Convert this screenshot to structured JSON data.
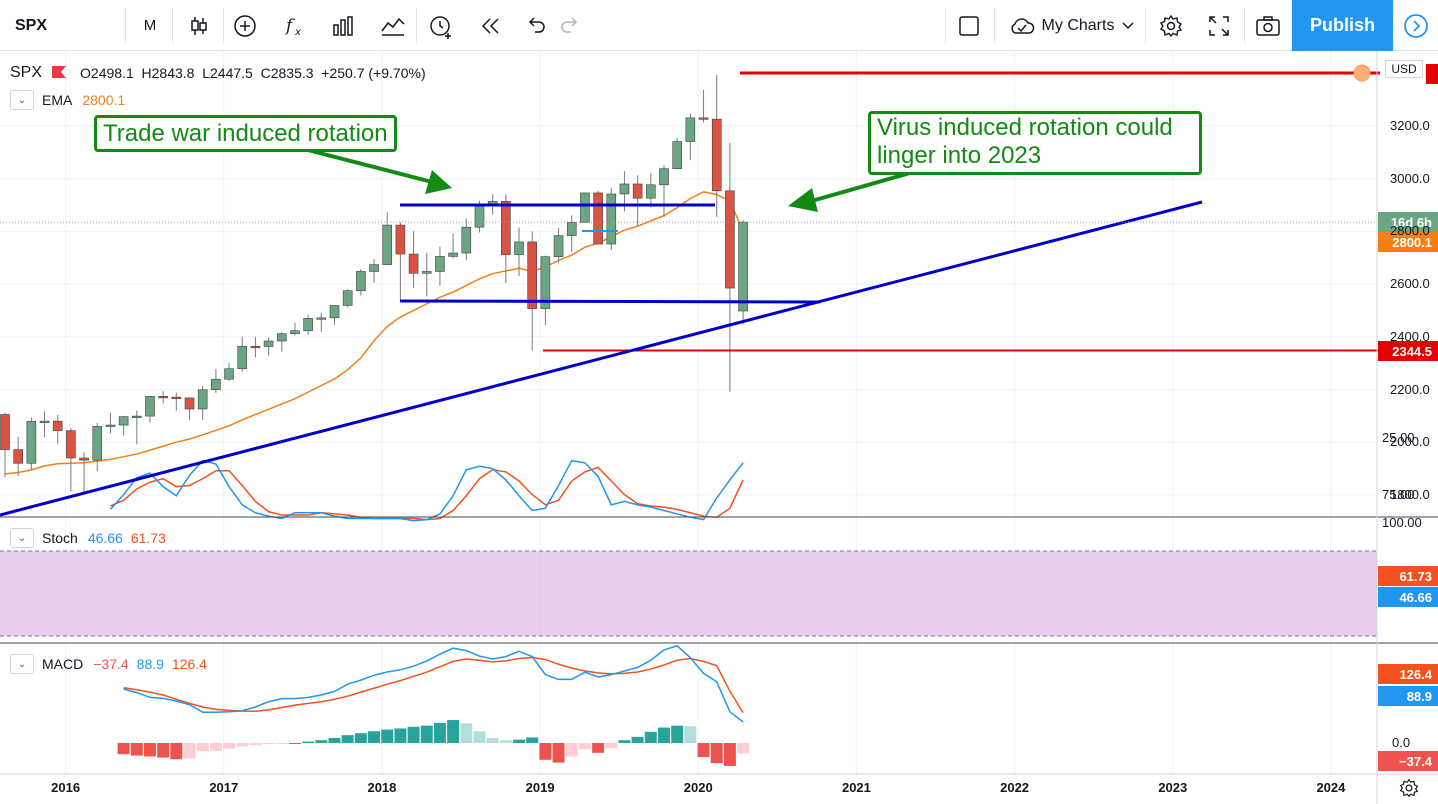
{
  "toolbar": {
    "symbol": "SPX",
    "interval": "M",
    "my_charts_label": "My Charts",
    "publish_label": "Publish"
  },
  "main_legend": {
    "symbol": "SPX",
    "ohlc_text": "O2498.1  H2843.8  L2447.5  C2835.3  +250.7 (+9.70%)",
    "currency": "USD"
  },
  "ema_legend": {
    "name": "EMA",
    "value": "2800.1",
    "color": "#f57f17"
  },
  "stoch_legend": {
    "name": "Stoch",
    "k": "46.66",
    "d": "61.73",
    "k_color": "#2196f3",
    "d_color": "#f4511e"
  },
  "macd_legend": {
    "name": "MACD",
    "hist": "−37.4",
    "macd": "88.9",
    "signal": "126.4"
  },
  "annotations": {
    "trade_war": "Trade war induced rotation",
    "virus_line1": "Virus induced rotation could",
    "virus_line2": "linger into 2023"
  },
  "price_axis": {
    "ticks": [
      "3200.0",
      "3000.0",
      "2800.0",
      "2600.0",
      "2400.0",
      "2200.0",
      "2000.0",
      "1800.0"
    ],
    "label_countdown": "16d 6h",
    "label_ema": "2800.1",
    "label_support": "2344.5",
    "resistance_level": 3390,
    "support_level": 2344.5
  },
  "stoch_axis": {
    "ticks": [
      "100.00",
      "75.00",
      "25.00"
    ],
    "label_d": "61.73",
    "label_k": "46.66"
  },
  "macd_axis": {
    "ticks": [
      "0.0"
    ],
    "label_signal": "126.4",
    "label_macd": "88.9",
    "label_hist": "−37.4"
  },
  "time_axis": {
    "ticks": [
      "2016",
      "2017",
      "2018",
      "2019",
      "2020",
      "2021",
      "2022",
      "2023",
      "2024"
    ]
  },
  "colors": {
    "up": "#6ba583",
    "down": "#d75442",
    "accent": "#2196f3",
    "trend": "#0000cc",
    "annotation": "#138a13",
    "level": "#e60000"
  },
  "chart_data": {
    "type": "candlestick",
    "timeframe": "monthly",
    "start": "2015-08",
    "candles": [
      [
        2105,
        2112,
        1867,
        1972
      ],
      [
        1972,
        2021,
        1872,
        1920
      ],
      [
        1920,
        2094,
        1893,
        2079
      ],
      [
        2079,
        2117,
        2019,
        2080
      ],
      [
        2080,
        2104,
        1993,
        2044
      ],
      [
        2044,
        2053,
        1812,
        1940
      ],
      [
        1940,
        1962,
        1810,
        1932
      ],
      [
        1932,
        2073,
        1891,
        2060
      ],
      [
        2060,
        2111,
        2034,
        2065
      ],
      [
        2065,
        2099,
        2025,
        2097
      ],
      [
        2097,
        2120,
        1992,
        2099
      ],
      [
        2099,
        2176,
        2074,
        2174
      ],
      [
        2174,
        2194,
        2147,
        2171
      ],
      [
        2171,
        2188,
        2119,
        2168
      ],
      [
        2168,
        2169,
        2084,
        2126
      ],
      [
        2126,
        2214,
        2084,
        2199
      ],
      [
        2199,
        2278,
        2187,
        2239
      ],
      [
        2239,
        2301,
        2233,
        2279
      ],
      [
        2279,
        2401,
        2268,
        2364
      ],
      [
        2364,
        2400,
        2322,
        2363
      ],
      [
        2363,
        2398,
        2329,
        2384
      ],
      [
        2384,
        2418,
        2344,
        2412
      ],
      [
        2412,
        2453,
        2405,
        2423
      ],
      [
        2423,
        2484,
        2407,
        2470
      ],
      [
        2470,
        2491,
        2418,
        2472
      ],
      [
        2472,
        2519,
        2446,
        2519
      ],
      [
        2519,
        2582,
        2511,
        2575
      ],
      [
        2575,
        2657,
        2557,
        2648
      ],
      [
        2648,
        2695,
        2605,
        2674
      ],
      [
        2674,
        2873,
        2674,
        2824
      ],
      [
        2824,
        2835,
        2533,
        2714
      ],
      [
        2714,
        2801,
        2585,
        2641
      ],
      [
        2641,
        2718,
        2553,
        2648
      ],
      [
        2648,
        2742,
        2594,
        2705
      ],
      [
        2705,
        2791,
        2698,
        2718
      ],
      [
        2718,
        2848,
        2691,
        2816
      ],
      [
        2816,
        2916,
        2796,
        2902
      ],
      [
        2902,
        2941,
        2864,
        2914
      ],
      [
        2914,
        2940,
        2604,
        2712
      ],
      [
        2712,
        2815,
        2631,
        2760
      ],
      [
        2760,
        2800,
        2347,
        2507
      ],
      [
        2507,
        2708,
        2444,
        2704
      ],
      [
        2704,
        2813,
        2681,
        2784
      ],
      [
        2784,
        2861,
        2722,
        2834
      ],
      [
        2834,
        2946,
        2834,
        2946
      ],
      [
        2946,
        2954,
        2750,
        2752
      ],
      [
        2752,
        2964,
        2729,
        2942
      ],
      [
        2942,
        3028,
        2876,
        2980
      ],
      [
        2980,
        3013,
        2822,
        2926
      ],
      [
        2926,
        3021,
        2891,
        2977
      ],
      [
        2977,
        3050,
        2855,
        3038
      ],
      [
        3038,
        3154,
        3038,
        3141
      ],
      [
        3141,
        3247,
        3070,
        3231
      ],
      [
        3231,
        3337,
        3214,
        3226
      ],
      [
        3226,
        3394,
        2855,
        2954
      ],
      [
        2954,
        3136,
        2192,
        2585
      ],
      [
        2498,
        2844,
        2448,
        2835
      ]
    ],
    "ema": [
      1880,
      1885,
      1895,
      1910,
      1918,
      1920,
      1922,
      1928,
      1935,
      1945,
      1955,
      1970,
      1985,
      2000,
      2012,
      2028,
      2045,
      2062,
      2085,
      2105,
      2125,
      2145,
      2165,
      2190,
      2215,
      2240,
      2275,
      2320,
      2385,
      2440,
      2475,
      2500,
      2525,
      2550,
      2570,
      2595,
      2620,
      2640,
      2650,
      2660,
      2648,
      2665,
      2690,
      2710,
      2740,
      2755,
      2780,
      2805,
      2820,
      2840,
      2860,
      2890,
      2925,
      2950,
      2940,
      2915,
      2800
    ],
    "stoch_k": [
      88,
      75,
      60,
      56,
      68,
      76,
      58,
      45,
      48,
      68,
      84,
      91,
      94,
      96,
      91,
      91,
      91,
      94,
      96,
      96,
      96,
      96,
      96,
      98,
      97,
      92,
      76,
      53,
      50,
      52,
      62,
      76,
      89,
      87,
      67,
      45,
      47,
      59,
      84,
      81,
      84,
      86,
      89,
      92,
      95,
      97,
      78,
      62,
      47
    ],
    "stoch_d": [
      85,
      80,
      70,
      64,
      61,
      68,
      67,
      61,
      54,
      54,
      67,
      81,
      90,
      93,
      93,
      93,
      91,
      92,
      93,
      95,
      96,
      96,
      96,
      96,
      97,
      96,
      89,
      76,
      61,
      53,
      55,
      63,
      75,
      84,
      80,
      63,
      55,
      51,
      63,
      75,
      83,
      85,
      86,
      88,
      91,
      94,
      95,
      87,
      62
    ],
    "macd_line": [
      225,
      210,
      190,
      186,
      175,
      160,
      128,
      128,
      130,
      134,
      150,
      172,
      185,
      185,
      190,
      200,
      215,
      245,
      262,
      282,
      296,
      305,
      320,
      342,
      370,
      395,
      385,
      362,
      350,
      360,
      382,
      360,
      285,
      265,
      265,
      295,
      275,
      285,
      300,
      315,
      345,
      388,
      405,
      355,
      290,
      255,
      130,
      88
    ],
    "signal_line": [
      230,
      222,
      212,
      200,
      182,
      165,
      150,
      140,
      136,
      133,
      132,
      138,
      148,
      158,
      165,
      172,
      182,
      195,
      212,
      228,
      245,
      260,
      278,
      295,
      318,
      340,
      350,
      345,
      338,
      342,
      352,
      356,
      348,
      328,
      312,
      300,
      292,
      288,
      290,
      296,
      308,
      325,
      345,
      352,
      340,
      322,
      216,
      126
    ],
    "histogram": [
      -40,
      -45,
      -48,
      -52,
      -58,
      -55,
      -30,
      -28,
      -20,
      -12,
      -8,
      -3,
      -2,
      -3,
      5,
      10,
      18,
      28,
      35,
      42,
      48,
      52,
      58,
      62,
      72,
      82,
      70,
      42,
      18,
      10,
      12,
      20,
      -60,
      -70,
      -48,
      -22,
      -35,
      -18,
      10,
      22,
      40,
      55,
      62,
      60,
      -50,
      -72,
      -82,
      -37
    ]
  }
}
